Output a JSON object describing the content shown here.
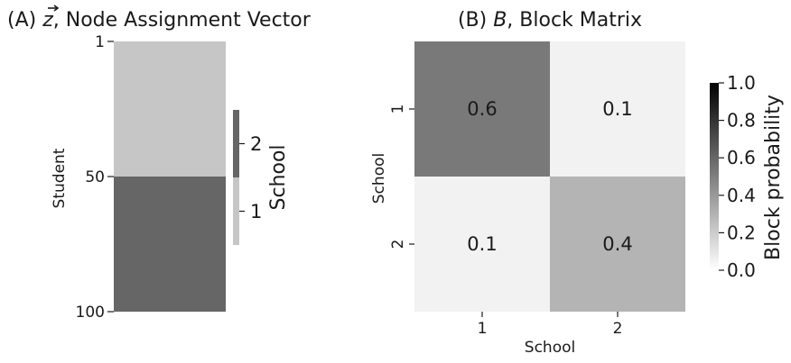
{
  "chart_data": [
    {
      "type": "heatmap",
      "title": "(A) ⃗z, Node Assignment Vector",
      "title_parts": {
        "prefix": "(A) ",
        "symbol": "z",
        "rest": ", Node Assignment Vector"
      },
      "ylabel": "Student",
      "yticks": [
        "1",
        "50",
        "100"
      ],
      "y_range": [
        1,
        100
      ],
      "blocks": [
        {
          "from": 1,
          "to": 50,
          "value": 1,
          "color": "#c6c6c6"
        },
        {
          "from": 51,
          "to": 100,
          "value": 2,
          "color": "#666666"
        }
      ],
      "colorbar": {
        "label": "School",
        "ticks": [
          "1",
          "2"
        ],
        "colors": [
          "#c6c6c6",
          "#666666"
        ]
      }
    },
    {
      "type": "heatmap",
      "title": "(B) B, Block Matrix",
      "title_parts": {
        "prefix": "(B) ",
        "symbol": "B",
        "rest": ", Block Matrix"
      },
      "xlabel": "School",
      "ylabel": "School",
      "xticks": [
        "1",
        "2"
      ],
      "yticks": [
        "1",
        "2"
      ],
      "values": [
        [
          0.6,
          0.1
        ],
        [
          0.1,
          0.4
        ]
      ],
      "value_labels": [
        [
          "0.6",
          "0.1"
        ],
        [
          "0.1",
          "0.4"
        ]
      ],
      "cell_colors": [
        [
          "#797979",
          "#f2f2f2"
        ],
        [
          "#f2f2f2",
          "#b4b4b4"
        ]
      ],
      "label_colors": [
        [
          "#ffffff",
          "#1a1a1a"
        ],
        [
          "#1a1a1a",
          "#1a1a1a"
        ]
      ],
      "colorbar": {
        "label": "Block probability",
        "ticks": [
          "0.0",
          "0.2",
          "0.4",
          "0.6",
          "0.8",
          "1.0"
        ],
        "range": [
          0.0,
          1.0
        ],
        "colors": [
          "#ffffff",
          "#000000"
        ]
      }
    }
  ]
}
